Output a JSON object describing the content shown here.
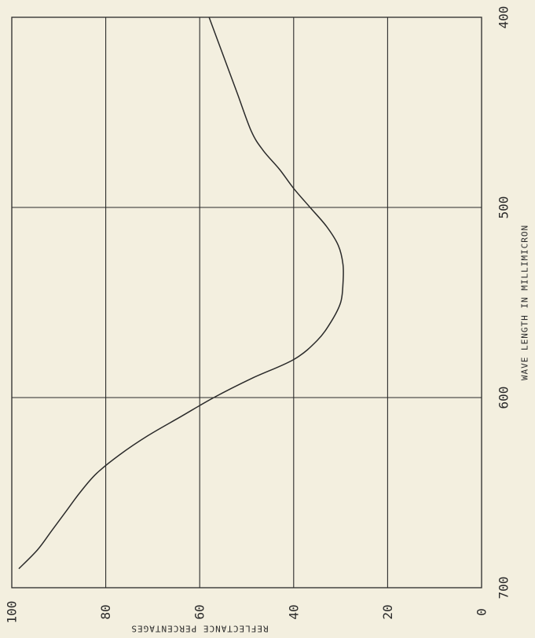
{
  "chart_data": {
    "type": "line",
    "title": "",
    "xlabel": "WAVE LENGTH IN MILLIMICRON",
    "ylabel": "REFLECTANCE PERCENTAGES",
    "xlim": [
      400,
      700
    ],
    "ylim": [
      0,
      100
    ],
    "x_ticks": [
      "400",
      "500",
      "600",
      "700"
    ],
    "y_ticks": [
      "0",
      "20",
      "40",
      "60",
      "80",
      "100"
    ],
    "grid": true,
    "orientation": "rotated-90-clockwise",
    "series": [
      {
        "x": [
          400,
          420,
          440,
          460,
          470,
          480,
          490,
          500,
          510,
          520,
          530,
          540,
          550,
          560,
          570,
          580,
          590,
          600,
          610,
          620,
          630,
          640,
          650,
          660,
          670,
          680,
          690
        ],
        "values": [
          58,
          55,
          52,
          49,
          46.5,
          43,
          40,
          36.5,
          33,
          30.5,
          29.5,
          29.5,
          30,
          32,
          35,
          40,
          49,
          57,
          64,
          71,
          77,
          82,
          85.5,
          88.5,
          91.5,
          94.5,
          98.5
        ]
      }
    ]
  },
  "colors": {
    "paper": "#f3efdf",
    "ink": "#2a2a2a"
  }
}
